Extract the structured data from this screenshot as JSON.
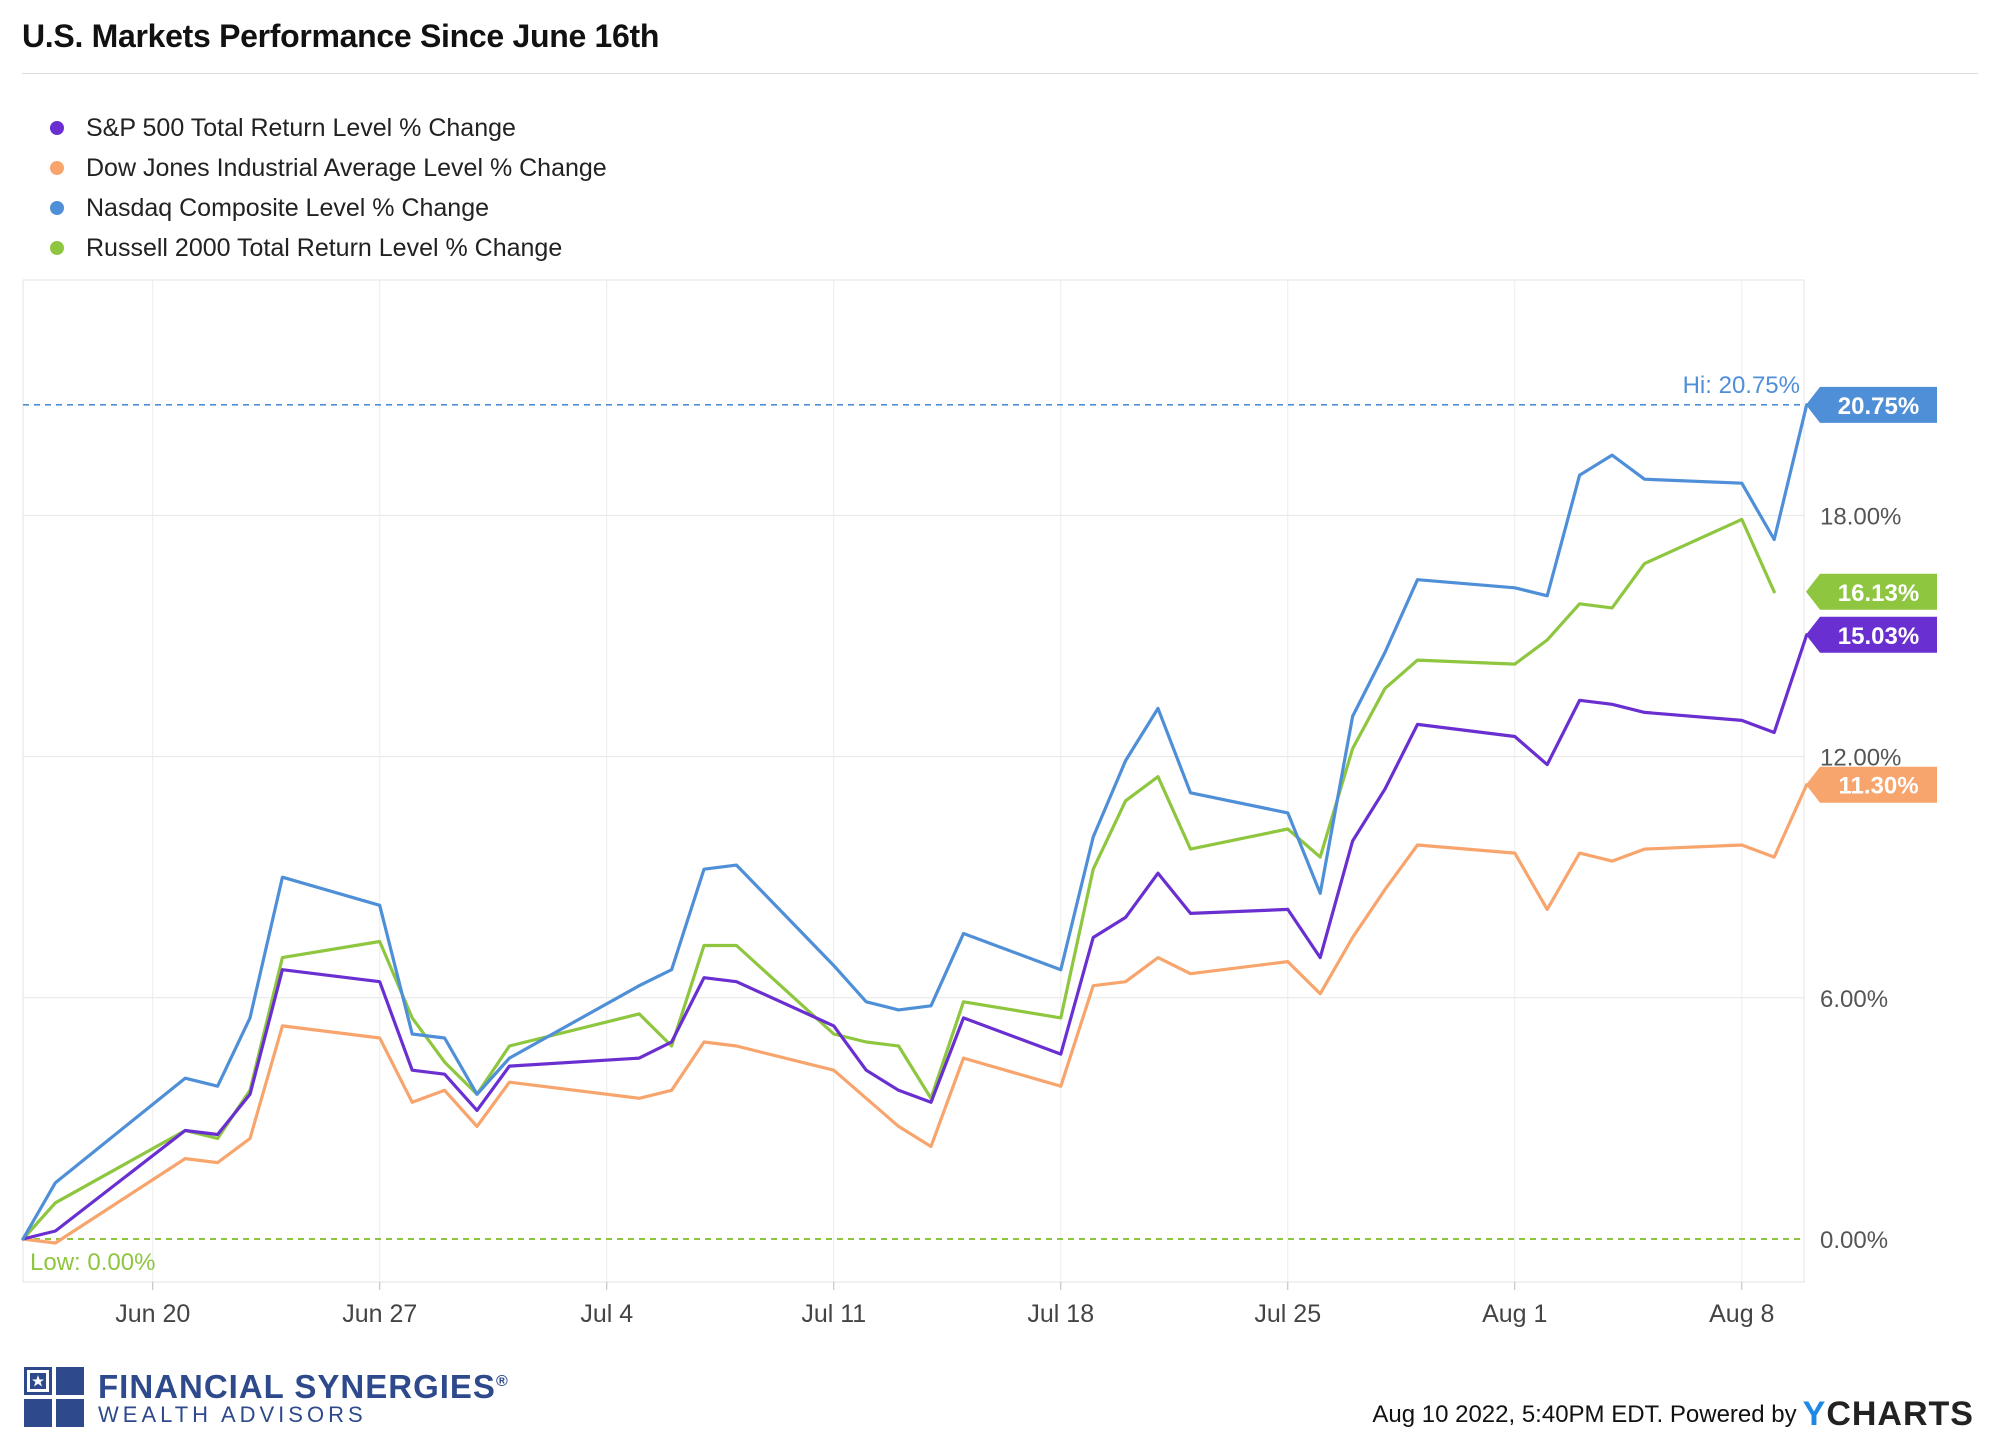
{
  "header": {
    "title": "U.S. Markets Performance Since June 16th"
  },
  "chart_data": {
    "type": "line",
    "title": "U.S. Markets Performance Since June 16th",
    "xlabel": "",
    "ylabel": "",
    "x_tick_labels": [
      "Jun 20",
      "Jun 27",
      "Jul 4",
      "Jul 11",
      "Jul 18",
      "Jul 25",
      "Aug 1",
      "Aug 8"
    ],
    "y_tick_labels": [
      "0.00%",
      "6.00%",
      "12.00%",
      "18.00%"
    ],
    "ylim": [
      -1.1,
      24.0
    ],
    "xlim": [
      "2022-06-16",
      "2022-08-10"
    ],
    "grid": true,
    "legend_position": "top-left",
    "series": [
      {
        "name": "S&P 500 Total Return Level % Change",
        "color": "#6a2fd0",
        "end_label": "15.03%",
        "points": [
          [
            "2022-06-16",
            0
          ],
          [
            "2022-06-17",
            0.2
          ],
          [
            "2022-06-21",
            2.7
          ],
          [
            "2022-06-22",
            2.6
          ],
          [
            "2022-06-23",
            3.6
          ],
          [
            "2022-06-24",
            6.7
          ],
          [
            "2022-06-27",
            6.4
          ],
          [
            "2022-06-28",
            4.2
          ],
          [
            "2022-06-29",
            4.1
          ],
          [
            "2022-06-30",
            3.2
          ],
          [
            "2022-07-01",
            4.3
          ],
          [
            "2022-07-05",
            4.5
          ],
          [
            "2022-07-06",
            4.9
          ],
          [
            "2022-07-07",
            6.5
          ],
          [
            "2022-07-08",
            6.4
          ],
          [
            "2022-07-11",
            5.3
          ],
          [
            "2022-07-12",
            4.2
          ],
          [
            "2022-07-13",
            3.7
          ],
          [
            "2022-07-14",
            3.4
          ],
          [
            "2022-07-15",
            5.5
          ],
          [
            "2022-07-18",
            4.6
          ],
          [
            "2022-07-19",
            7.5
          ],
          [
            "2022-07-20",
            8.0
          ],
          [
            "2022-07-21",
            9.1
          ],
          [
            "2022-07-22",
            8.1
          ],
          [
            "2022-07-25",
            8.2
          ],
          [
            "2022-07-26",
            7.0
          ],
          [
            "2022-07-27",
            9.9
          ],
          [
            "2022-07-28",
            11.2
          ],
          [
            "2022-07-29",
            12.8
          ],
          [
            "2022-08-01",
            12.5
          ],
          [
            "2022-08-02",
            11.8
          ],
          [
            "2022-08-03",
            13.4
          ],
          [
            "2022-08-04",
            13.3
          ],
          [
            "2022-08-05",
            13.1
          ],
          [
            "2022-08-08",
            12.9
          ],
          [
            "2022-08-09",
            12.6
          ],
          [
            "2022-08-10",
            15.03
          ]
        ]
      },
      {
        "name": "Dow Jones Industrial Average Level % Change",
        "color": "#f7a56d",
        "end_label": "11.30%",
        "points": [
          [
            "2022-06-16",
            0
          ],
          [
            "2022-06-17",
            -0.1
          ],
          [
            "2022-06-21",
            2.0
          ],
          [
            "2022-06-22",
            1.9
          ],
          [
            "2022-06-23",
            2.5
          ],
          [
            "2022-06-24",
            5.3
          ],
          [
            "2022-06-27",
            5.0
          ],
          [
            "2022-06-28",
            3.4
          ],
          [
            "2022-06-29",
            3.7
          ],
          [
            "2022-06-30",
            2.8
          ],
          [
            "2022-07-01",
            3.9
          ],
          [
            "2022-07-05",
            3.5
          ],
          [
            "2022-07-06",
            3.7
          ],
          [
            "2022-07-07",
            4.9
          ],
          [
            "2022-07-08",
            4.8
          ],
          [
            "2022-07-11",
            4.2
          ],
          [
            "2022-07-12",
            3.5
          ],
          [
            "2022-07-13",
            2.8
          ],
          [
            "2022-07-14",
            2.3
          ],
          [
            "2022-07-15",
            4.5
          ],
          [
            "2022-07-18",
            3.8
          ],
          [
            "2022-07-19",
            6.3
          ],
          [
            "2022-07-20",
            6.4
          ],
          [
            "2022-07-21",
            7.0
          ],
          [
            "2022-07-22",
            6.6
          ],
          [
            "2022-07-25",
            6.9
          ],
          [
            "2022-07-26",
            6.1
          ],
          [
            "2022-07-27",
            7.5
          ],
          [
            "2022-07-28",
            8.7
          ],
          [
            "2022-07-29",
            9.8
          ],
          [
            "2022-08-01",
            9.6
          ],
          [
            "2022-08-02",
            8.2
          ],
          [
            "2022-08-03",
            9.6
          ],
          [
            "2022-08-04",
            9.4
          ],
          [
            "2022-08-05",
            9.7
          ],
          [
            "2022-08-08",
            9.8
          ],
          [
            "2022-08-09",
            9.5
          ],
          [
            "2022-08-10",
            11.3
          ]
        ]
      },
      {
        "name": "Nasdaq Composite Level % Change",
        "color": "#4f8fd8",
        "end_label": "20.75%",
        "points": [
          [
            "2022-06-16",
            0
          ],
          [
            "2022-06-17",
            1.4
          ],
          [
            "2022-06-21",
            4.0
          ],
          [
            "2022-06-22",
            3.8
          ],
          [
            "2022-06-23",
            5.5
          ],
          [
            "2022-06-24",
            9.0
          ],
          [
            "2022-06-27",
            8.3
          ],
          [
            "2022-06-28",
            5.1
          ],
          [
            "2022-06-29",
            5.0
          ],
          [
            "2022-06-30",
            3.6
          ],
          [
            "2022-07-01",
            4.5
          ],
          [
            "2022-07-05",
            6.3
          ],
          [
            "2022-07-06",
            6.7
          ],
          [
            "2022-07-07",
            9.2
          ],
          [
            "2022-07-08",
            9.3
          ],
          [
            "2022-07-11",
            6.8
          ],
          [
            "2022-07-12",
            5.9
          ],
          [
            "2022-07-13",
            5.7
          ],
          [
            "2022-07-14",
            5.8
          ],
          [
            "2022-07-15",
            7.6
          ],
          [
            "2022-07-18",
            6.7
          ],
          [
            "2022-07-19",
            10.0
          ],
          [
            "2022-07-20",
            11.9
          ],
          [
            "2022-07-21",
            13.2
          ],
          [
            "2022-07-22",
            11.1
          ],
          [
            "2022-07-25",
            10.6
          ],
          [
            "2022-07-26",
            8.6
          ],
          [
            "2022-07-27",
            13.0
          ],
          [
            "2022-07-28",
            14.6
          ],
          [
            "2022-07-29",
            16.4
          ],
          [
            "2022-08-01",
            16.2
          ],
          [
            "2022-08-02",
            16.0
          ],
          [
            "2022-08-03",
            19.0
          ],
          [
            "2022-08-04",
            19.5
          ],
          [
            "2022-08-05",
            18.9
          ],
          [
            "2022-08-08",
            18.8
          ],
          [
            "2022-08-09",
            17.4
          ],
          [
            "2022-08-10",
            20.75
          ]
        ]
      },
      {
        "name": "Russell 2000 Total Return Level % Change",
        "color": "#8ec63f",
        "end_label": "16.13%",
        "points": [
          [
            "2022-06-16",
            0
          ],
          [
            "2022-06-17",
            0.9
          ],
          [
            "2022-06-21",
            2.7
          ],
          [
            "2022-06-22",
            2.5
          ],
          [
            "2022-06-23",
            3.7
          ],
          [
            "2022-06-24",
            7.0
          ],
          [
            "2022-06-27",
            7.4
          ],
          [
            "2022-06-28",
            5.5
          ],
          [
            "2022-06-29",
            4.4
          ],
          [
            "2022-06-30",
            3.6
          ],
          [
            "2022-07-01",
            4.8
          ],
          [
            "2022-07-05",
            5.6
          ],
          [
            "2022-07-06",
            4.8
          ],
          [
            "2022-07-07",
            7.3
          ],
          [
            "2022-07-08",
            7.3
          ],
          [
            "2022-07-11",
            5.1
          ],
          [
            "2022-07-12",
            4.9
          ],
          [
            "2022-07-13",
            4.8
          ],
          [
            "2022-07-14",
            3.5
          ],
          [
            "2022-07-15",
            5.9
          ],
          [
            "2022-07-18",
            5.5
          ],
          [
            "2022-07-19",
            9.2
          ],
          [
            "2022-07-20",
            10.9
          ],
          [
            "2022-07-21",
            11.5
          ],
          [
            "2022-07-22",
            9.7
          ],
          [
            "2022-07-25",
            10.2
          ],
          [
            "2022-07-26",
            9.5
          ],
          [
            "2022-07-27",
            12.2
          ],
          [
            "2022-07-28",
            13.7
          ],
          [
            "2022-07-29",
            14.4
          ],
          [
            "2022-08-01",
            14.3
          ],
          [
            "2022-08-02",
            14.9
          ],
          [
            "2022-08-03",
            15.8
          ],
          [
            "2022-08-04",
            15.7
          ],
          [
            "2022-08-05",
            16.8
          ],
          [
            "2022-08-08",
            17.9
          ],
          [
            "2022-08-09",
            16.1
          ]
        ]
      }
    ],
    "annotations": {
      "high": {
        "label": "Hi: 20.75%",
        "value": 20.75,
        "color": "#4f8fd8"
      },
      "low": {
        "label": "Low: 0.00%",
        "value": 0.0,
        "color": "#8ec63f"
      }
    }
  },
  "branding": {
    "logo_name": "FINANCIAL SYNERGIES",
    "logo_registered": "®",
    "logo_subtitle": "WEALTH ADVISORS"
  },
  "footer": {
    "timestamp_text": "Aug 10 2022, 5:40PM EDT. Powered by",
    "ycharts_y": "Y",
    "ycharts_rest": "CHARTS"
  }
}
